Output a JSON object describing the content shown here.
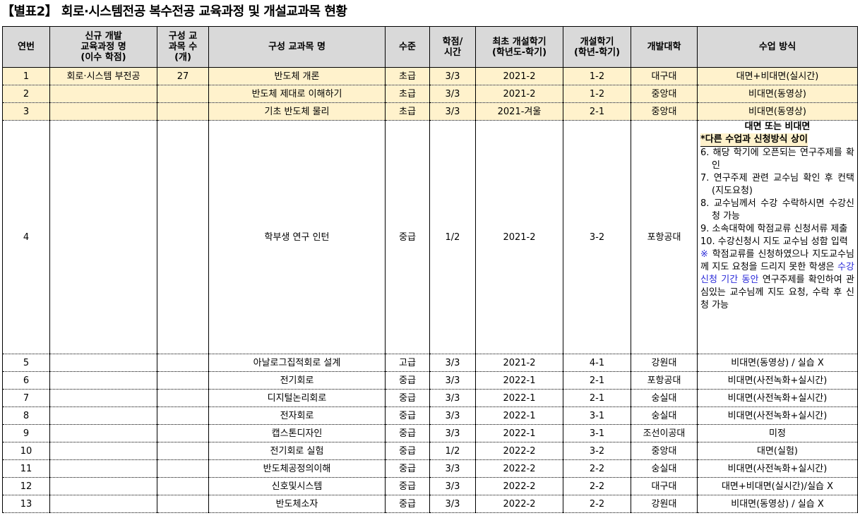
{
  "title": "【별표2】 회로·시스템전공 복수전공 교육과정 및 개설교과목 현황",
  "headers": {
    "no": "연번",
    "program": [
      "신규 개발",
      "교육과정 명",
      "(이수 학점)"
    ],
    "count": [
      "구성 교",
      "과목 수",
      "(개)"
    ],
    "course": "구성 교과목 명",
    "level": "수준",
    "credit": [
      "학점/",
      "시간"
    ],
    "first": [
      "최초 개설학기",
      "(학년도-학기)"
    ],
    "semester": [
      "개설학기",
      "(학년-학기)"
    ],
    "univ": "개발대학",
    "method": "수업 방식"
  },
  "rows": [
    {
      "no": "1",
      "program": "회로·시스템 부전공",
      "count": "27",
      "course": "반도체 개론",
      "level": "초급",
      "credit": "3/3",
      "first": "2021-2",
      "semester": "1-2",
      "univ": "대구대",
      "method": "대면+비대면(실시간)"
    },
    {
      "no": "2",
      "program": "",
      "count": "",
      "course": "반도체 제대로 이해하기",
      "level": "초급",
      "credit": "3/3",
      "first": "2021-2",
      "semester": "1-2",
      "univ": "중앙대",
      "method": "비대면(동영상)"
    },
    {
      "no": "3",
      "program": "",
      "count": "",
      "course": "기초 반도체 물리",
      "level": "초급",
      "credit": "3/3",
      "first": "2021-겨울",
      "semester": "2-1",
      "univ": "중앙대",
      "method": "비대면(동영상)"
    },
    {
      "no": "4",
      "program": "",
      "count": "",
      "course": "학부생 연구 인턴",
      "level": "중급",
      "credit": "1/2",
      "first": "2021-2",
      "semester": "3-2",
      "univ": "포항공대",
      "method": ""
    },
    {
      "no": "5",
      "program": "",
      "count": "",
      "course": "아날로그집적회로 설계",
      "level": "고급",
      "credit": "3/3",
      "first": "2021-2",
      "semester": "4-1",
      "univ": "강원대",
      "method": "비대면(동영상) / 실습 X"
    },
    {
      "no": "6",
      "program": "",
      "count": "",
      "course": "전기회로",
      "level": "중급",
      "credit": "3/3",
      "first": "2022-1",
      "semester": "2-1",
      "univ": "포항공대",
      "method": "비대면(사전녹화+실시간)"
    },
    {
      "no": "7",
      "program": "",
      "count": "",
      "course": "디지털논리회로",
      "level": "중급",
      "credit": "3/3",
      "first": "2022-1",
      "semester": "2-1",
      "univ": "숭실대",
      "method": "비대면(사전녹화+실시간)"
    },
    {
      "no": "8",
      "program": "",
      "count": "",
      "course": "전자회로",
      "level": "중급",
      "credit": "3/3",
      "first": "2022-1",
      "semester": "3-1",
      "univ": "숭실대",
      "method": "비대면(사전녹화+실시간)"
    },
    {
      "no": "9",
      "program": "",
      "count": "",
      "course": "캡스톤디자인",
      "level": "중급",
      "credit": "3/3",
      "first": "2022-1",
      "semester": "3-1",
      "univ": "조선이공대",
      "method": "미정"
    },
    {
      "no": "10",
      "program": "",
      "count": "",
      "course": "전기회로 실험",
      "level": "중급",
      "credit": "1/2",
      "first": "2022-2",
      "semester": "3-2",
      "univ": "중앙대",
      "method": "대면(실험)"
    },
    {
      "no": "11",
      "program": "",
      "count": "",
      "course": "반도체공정의이해",
      "level": "중급",
      "credit": "3/3",
      "first": "2022-2",
      "semester": "2-2",
      "univ": "숭실대",
      "method": "비대면(사전녹화+실시간)"
    },
    {
      "no": "12",
      "program": "",
      "count": "",
      "course": "신호및시스템",
      "level": "중급",
      "credit": "3/3",
      "first": "2022-2",
      "semester": "2-2",
      "univ": "대구대",
      "method": "대면+비대면(실시간)/실습 X"
    },
    {
      "no": "13",
      "program": "",
      "count": "",
      "course": "반도체소자",
      "level": "중급",
      "credit": "3/3",
      "first": "2022-2",
      "semester": "2-2",
      "univ": "강원대",
      "method": "비대면(동영상) / 실습 X"
    }
  ],
  "row4_method": {
    "heading": "대면 또는 비대면",
    "note": "*다른 수업과 신청방식 상이",
    "steps": [
      "6. 해당 학기에 오픈되는 연구주제를 확인",
      "7. 연구주제 관련 교수님 확인 후 컨택(지도요청)",
      "8. 교수님께서 수강 수락하시면 수강신청 가능",
      "9. 소속대학에 학점교류 신청서류 제출",
      "10. 수강신청시 지도 교수님 성함 입력"
    ],
    "remark_mark": "※",
    "remark_a": " 학점교류를 신청하였으나 지도교수님께 지도 요청을 드리지 못한 학생은 ",
    "remark_blue": "수강신청 기간 동안",
    "remark_b": " 연구주제를 확인하여 관심있는 교수님께 지도 요청, 수락 후 신청 가능"
  },
  "colors": {
    "header_bg": "#d9d9d9",
    "highlight_row": "#fff2cc",
    "remark_blue": "#2b2bd9"
  }
}
